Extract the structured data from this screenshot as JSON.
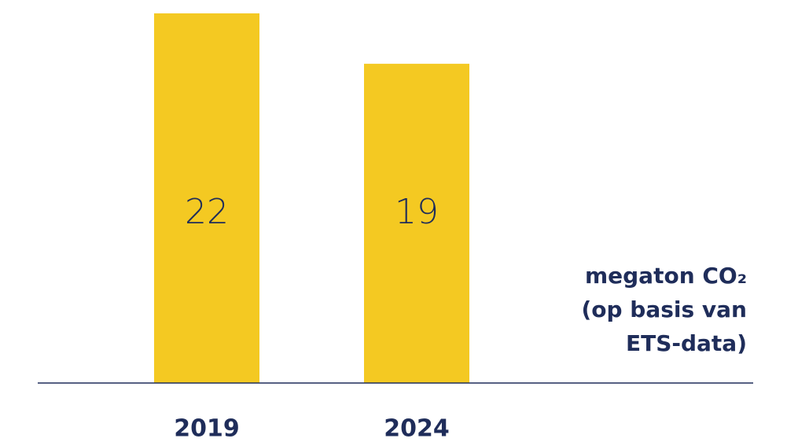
{
  "chart_data": {
    "type": "bar",
    "categories": [
      "2019",
      "2024"
    ],
    "values": [
      22,
      19
    ],
    "color": "#f4c922",
    "ylim": [
      0,
      22
    ],
    "annotation": [
      "megaton CO₂",
      "(op basis van",
      "ETS-data)"
    ]
  }
}
